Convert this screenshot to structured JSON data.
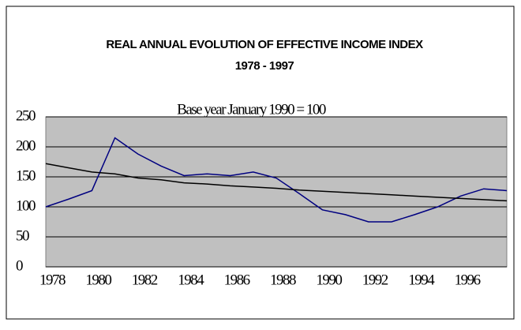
{
  "chart_data": {
    "type": "line",
    "title": "REAL ANNUAL EVOLUTION OF EFFECTIVE INCOME INDEX",
    "subtitle": "1978 - 1997",
    "annotation": "Base year January 1990 = 100",
    "categories": [
      "1978",
      null,
      "1980",
      null,
      "1982",
      null,
      "1984",
      null,
      "1986",
      null,
      "1988",
      null,
      "1990",
      null,
      "1992",
      null,
      "1994",
      null,
      "1996",
      null,
      null
    ],
    "series": [
      {
        "color": "#000080",
        "values": [
          100,
          113,
          127,
          215,
          188,
          168,
          152,
          155,
          152,
          158,
          148,
          122,
          95,
          87,
          75,
          75,
          87,
          100,
          118,
          130,
          127
        ]
      },
      {
        "color": "#000000",
        "values": [
          172,
          165,
          158,
          155,
          148,
          145,
          140,
          138,
          135,
          133,
          131,
          128,
          126,
          124,
          122,
          120,
          118,
          116,
          114,
          112,
          110
        ]
      }
    ],
    "ylim": [
      0,
      250
    ],
    "yticks": [
      0,
      50,
      100,
      150,
      200,
      250
    ],
    "grid": true,
    "plot_color": "#c0c0c0"
  }
}
